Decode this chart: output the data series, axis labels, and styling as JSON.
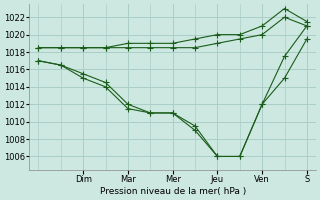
{
  "xlabel": "Pression niveau de la mer( hPa )",
  "background_color": "#cce8e0",
  "grid_color": "#aacfc8",
  "line_color": "#1a5c1a",
  "xlim": [
    -0.2,
    6.2
  ],
  "ylim": [
    1004.5,
    1023.5
  ],
  "yticks": [
    1006,
    1008,
    1010,
    1012,
    1014,
    1016,
    1018,
    1020,
    1022
  ],
  "day_tick_positions": [
    1,
    2,
    3,
    4,
    5,
    6
  ],
  "day_tick_labels": [
    "Dim",
    "Mar",
    "Mer",
    "Jeu",
    "Ven",
    "S"
  ],
  "series": [
    {
      "x": [
        0,
        0.5,
        1,
        1.5,
        2,
        2.5,
        3,
        3.5,
        4,
        4.5,
        5,
        5.5,
        6
      ],
      "y": [
        1018.5,
        1018.5,
        1018.5,
        1018.5,
        1019,
        1019,
        1019,
        1019.5,
        1020,
        1020,
        1021,
        1023,
        1021.5
      ],
      "marker": "+",
      "ms": 4
    },
    {
      "x": [
        0,
        0.5,
        1,
        1.5,
        2,
        2.5,
        3,
        3.5,
        4,
        4.5,
        5,
        5.5,
        6
      ],
      "y": [
        1018.5,
        1018.5,
        1018.5,
        1018.5,
        1018.5,
        1018.5,
        1018.5,
        1018.5,
        1019,
        1019.5,
        1020,
        1022,
        1021
      ],
      "marker": "+",
      "ms": 4
    },
    {
      "x": [
        0,
        0.5,
        1,
        1.5,
        2,
        2.5,
        3,
        3.5,
        4,
        4.5,
        5,
        5.5,
        6
      ],
      "y": [
        1017,
        1016.5,
        1015.5,
        1014.5,
        1012,
        1011,
        1011,
        1009,
        1006,
        1006,
        1012,
        1017.5,
        1021
      ],
      "marker": "+",
      "ms": 4
    },
    {
      "x": [
        0,
        0.5,
        1,
        1.5,
        2,
        2.5,
        3,
        3.5,
        4,
        4.5,
        5,
        5.5,
        6
      ],
      "y": [
        1017,
        1016.5,
        1015,
        1014,
        1011.5,
        1011,
        1011,
        1009.5,
        1006,
        1006,
        1012,
        1015,
        1019.5
      ],
      "marker": "+",
      "ms": 4
    }
  ]
}
